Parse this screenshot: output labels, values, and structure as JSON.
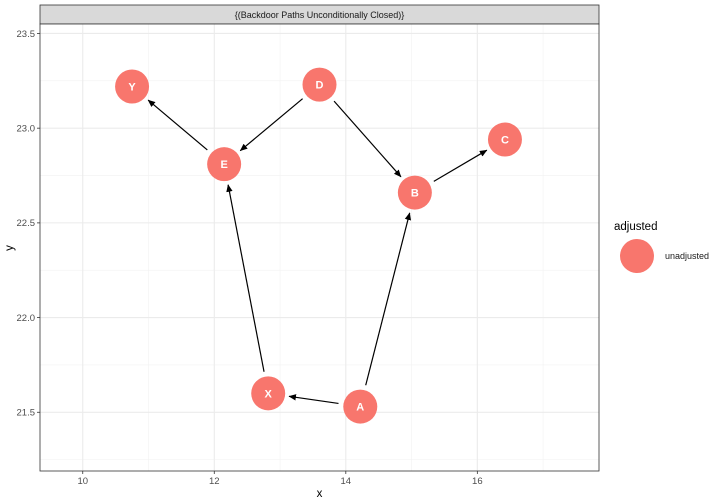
{
  "chart_data": {
    "type": "scatter",
    "subtype": "dag",
    "facet_label": "{(Backdoor Paths Unconditionally Closed)}",
    "xlabel": "x",
    "ylabel": "y",
    "xlim": [
      9.35,
      17.85
    ],
    "ylim": [
      21.19,
      23.55
    ],
    "x_ticks": [
      10,
      12,
      14,
      16
    ],
    "y_ticks": [
      21.5,
      22.0,
      22.5,
      23.0,
      23.5
    ],
    "x_tick_labels": [
      "10",
      "12",
      "14",
      "16"
    ],
    "y_tick_labels": [
      "21.5",
      "22.0",
      "22.5",
      "23.0",
      "23.5"
    ],
    "grid": true,
    "legend": {
      "title": "adjusted",
      "position": "right",
      "entries": [
        {
          "label": "unadjusted",
          "color": "#f8766d"
        }
      ]
    },
    "node_color": "#f8766d",
    "nodes": [
      {
        "name": "Y",
        "x": 10.75,
        "y": 23.22
      },
      {
        "name": "D",
        "x": 13.6,
        "y": 23.23
      },
      {
        "name": "E",
        "x": 12.15,
        "y": 22.81
      },
      {
        "name": "B",
        "x": 15.05,
        "y": 22.66
      },
      {
        "name": "C",
        "x": 16.42,
        "y": 22.94
      },
      {
        "name": "X",
        "x": 12.82,
        "y": 21.6
      },
      {
        "name": "A",
        "x": 14.22,
        "y": 21.53
      }
    ],
    "edges": [
      {
        "from": "E",
        "to": "Y"
      },
      {
        "from": "D",
        "to": "E"
      },
      {
        "from": "D",
        "to": "B"
      },
      {
        "from": "B",
        "to": "C"
      },
      {
        "from": "X",
        "to": "E"
      },
      {
        "from": "A",
        "to": "X"
      },
      {
        "from": "A",
        "to": "B"
      }
    ]
  }
}
